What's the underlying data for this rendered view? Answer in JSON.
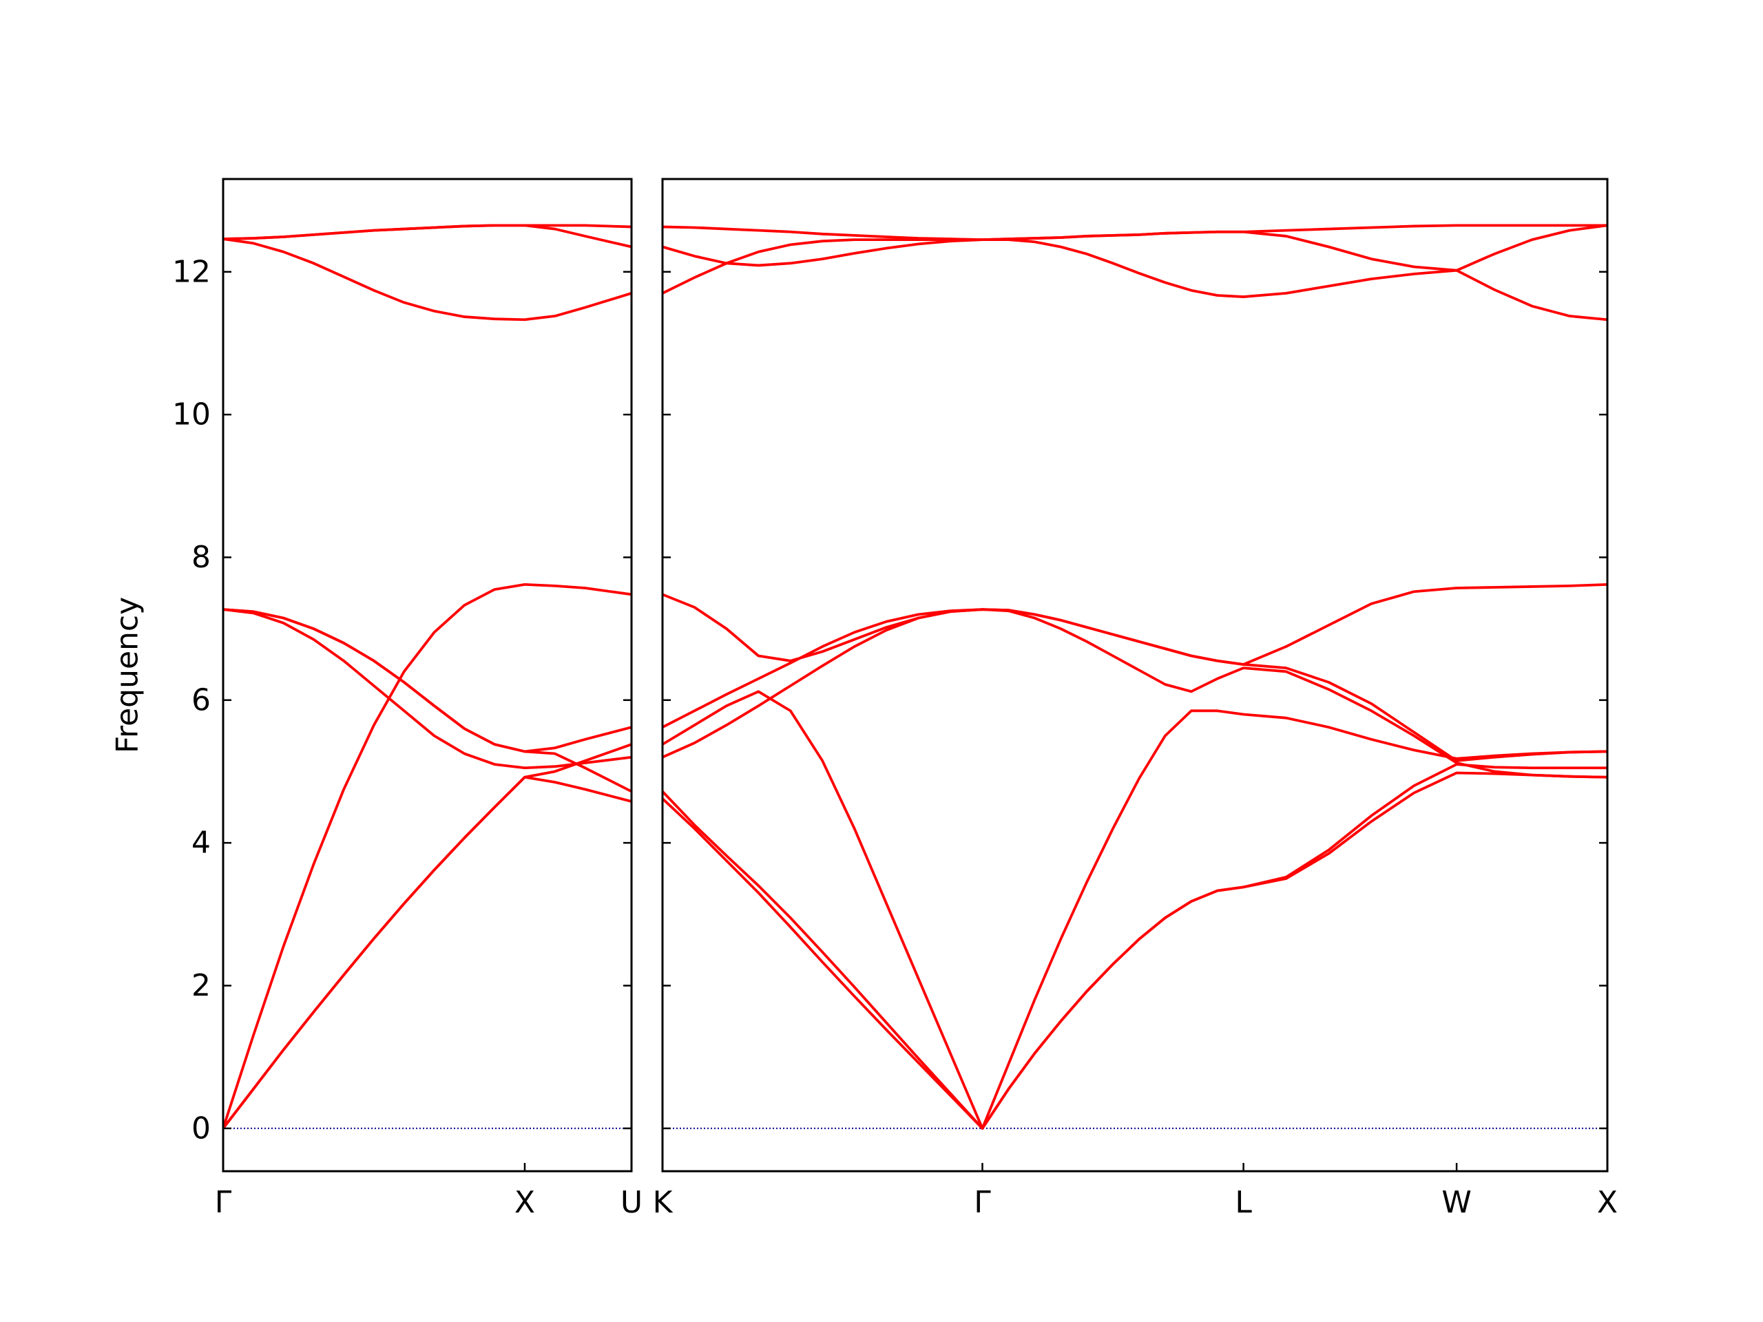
{
  "chart_data": [
    {
      "type": "line",
      "ylabel": "Frequency",
      "show_ytick_labels": true,
      "xlim": [
        0,
        1.354
      ],
      "xticks": [
        {
          "value": 0,
          "label": "Γ"
        },
        {
          "value": 1,
          "label": "X"
        },
        {
          "value": 1.354,
          "label": "U"
        }
      ],
      "ylim": [
        -0.6,
        13.3
      ],
      "yticks": [
        0,
        2,
        4,
        6,
        8,
        10,
        12
      ],
      "hlines": [
        0
      ],
      "hline_color": "#00008b",
      "x": [
        0,
        0.1,
        0.2,
        0.3,
        0.4,
        0.5,
        0.6,
        0.7,
        0.8,
        0.9,
        1.0,
        1.1,
        1.2,
        1.354
      ],
      "series": [
        {
          "color": "#ff0000",
          "values": [
            0,
            1.3,
            2.55,
            3.7,
            4.75,
            5.65,
            6.4,
            6.95,
            7.33,
            7.55,
            7.62,
            7.6,
            7.57,
            7.48
          ]
        },
        {
          "color": "#ff0000",
          "values": [
            0,
            0.55,
            1.1,
            1.63,
            2.15,
            2.66,
            3.15,
            3.62,
            4.07,
            4.5,
            4.92,
            4.85,
            4.75,
            4.58
          ]
        },
        {
          "color": "#ff0000",
          "values": [
            0,
            0.55,
            1.1,
            1.63,
            2.15,
            2.66,
            3.15,
            3.62,
            4.07,
            4.5,
            4.92,
            5.0,
            5.15,
            5.38
          ]
        },
        {
          "color": "#ff0000",
          "values": [
            7.27,
            7.24,
            7.15,
            7.0,
            6.8,
            6.55,
            6.25,
            5.92,
            5.6,
            5.38,
            5.28,
            5.33,
            5.45,
            5.62
          ]
        },
        {
          "color": "#ff0000",
          "values": [
            7.27,
            7.24,
            7.15,
            7.0,
            6.8,
            6.55,
            6.25,
            5.92,
            5.6,
            5.38,
            5.28,
            5.25,
            5.05,
            4.72
          ]
        },
        {
          "color": "#ff0000",
          "values": [
            7.27,
            7.22,
            7.08,
            6.85,
            6.55,
            6.2,
            5.85,
            5.5,
            5.25,
            5.1,
            5.05,
            5.07,
            5.12,
            5.2
          ]
        },
        {
          "color": "#ff0000",
          "values": [
            12.46,
            12.47,
            12.49,
            12.52,
            12.55,
            12.58,
            12.6,
            12.62,
            12.64,
            12.65,
            12.65,
            12.65,
            12.65,
            12.63
          ]
        },
        {
          "color": "#ff0000",
          "values": [
            12.46,
            12.47,
            12.49,
            12.52,
            12.55,
            12.58,
            12.6,
            12.62,
            12.64,
            12.65,
            12.65,
            12.6,
            12.5,
            12.35
          ]
        },
        {
          "color": "#ff0000",
          "values": [
            12.46,
            12.4,
            12.28,
            12.12,
            11.93,
            11.74,
            11.57,
            11.45,
            11.37,
            11.34,
            11.33,
            11.38,
            11.5,
            11.7
          ]
        }
      ]
    },
    {
      "type": "line",
      "show_ytick_labels": false,
      "xlim": [
        1.354,
        4.488
      ],
      "xticks": [
        {
          "value": 1.354,
          "label": "K"
        },
        {
          "value": 2.415,
          "label": "Γ"
        },
        {
          "value": 3.281,
          "label": "L"
        },
        {
          "value": 3.988,
          "label": "W"
        },
        {
          "value": 4.488,
          "label": "X"
        }
      ],
      "ylim": [
        -0.6,
        13.3
      ],
      "yticks": [
        0,
        2,
        4,
        6,
        8,
        10,
        12
      ],
      "hlines": [
        0
      ],
      "hline_color": "#00008b",
      "x": [
        1.354,
        1.4601,
        1.5662,
        1.6723,
        1.7784,
        1.8845,
        1.9906,
        2.0967,
        2.2028,
        2.3089,
        2.415,
        2.5016,
        2.5882,
        2.6748,
        2.7614,
        2.848,
        2.9346,
        3.0212,
        3.1078,
        3.1944,
        3.281,
        3.4224,
        3.5638,
        3.7052,
        3.8466,
        3.988,
        4.113,
        4.238,
        4.363,
        4.488
      ],
      "series": [
        {
          "color": "#ff0000",
          "values": [
            4.62,
            4.2,
            3.75,
            3.3,
            2.82,
            2.33,
            1.85,
            1.38,
            0.92,
            0.46,
            0,
            0.55,
            1.05,
            1.5,
            1.92,
            2.3,
            2.65,
            2.95,
            3.18,
            3.33,
            3.38,
            3.5,
            3.85,
            4.3,
            4.7,
            4.98,
            4.97,
            4.95,
            4.93,
            4.92
          ]
        },
        {
          "color": "#ff0000",
          "values": [
            4.72,
            4.25,
            3.82,
            3.4,
            2.95,
            2.47,
            1.98,
            1.48,
            0.98,
            0.49,
            0,
            0.55,
            1.05,
            1.5,
            1.92,
            2.3,
            2.65,
            2.95,
            3.18,
            3.33,
            3.38,
            3.52,
            3.9,
            4.38,
            4.8,
            5.1,
            5.06,
            5.05,
            5.05,
            5.05
          ]
        },
        {
          "color": "#ff0000",
          "values": [
            5.38,
            5.65,
            5.92,
            6.12,
            5.85,
            5.15,
            4.2,
            3.15,
            2.1,
            1.05,
            0,
            0.9,
            1.8,
            2.65,
            3.45,
            4.2,
            4.9,
            5.5,
            5.85,
            5.85,
            5.8,
            5.75,
            5.62,
            5.45,
            5.3,
            5.18,
            5.22,
            5.25,
            5.27,
            5.28
          ]
        },
        {
          "color": "#ff0000",
          "values": [
            5.2,
            5.4,
            5.65,
            5.92,
            6.2,
            6.48,
            6.75,
            6.98,
            7.15,
            7.24,
            7.27,
            7.26,
            7.2,
            7.12,
            7.02,
            6.92,
            6.82,
            6.72,
            6.62,
            6.55,
            6.5,
            6.75,
            7.05,
            7.35,
            7.52,
            7.57,
            7.58,
            7.59,
            7.6,
            7.62
          ]
        },
        {
          "color": "#ff0000",
          "values": [
            5.62,
            5.85,
            6.08,
            6.3,
            6.52,
            6.75,
            6.95,
            7.1,
            7.2,
            7.25,
            7.27,
            7.26,
            7.2,
            7.12,
            7.02,
            6.92,
            6.82,
            6.72,
            6.62,
            6.55,
            6.5,
            6.45,
            6.25,
            5.95,
            5.55,
            5.15,
            5.2,
            5.24,
            5.27,
            5.28
          ]
        },
        {
          "color": "#ff0000",
          "values": [
            7.48,
            7.3,
            7.0,
            6.62,
            6.55,
            6.68,
            6.85,
            7.02,
            7.15,
            7.24,
            7.27,
            7.25,
            7.15,
            7.0,
            6.82,
            6.62,
            6.42,
            6.22,
            6.12,
            6.3,
            6.45,
            6.4,
            6.15,
            5.85,
            5.5,
            5.12,
            5.0,
            4.95,
            4.93,
            4.92
          ]
        },
        {
          "color": "#ff0000",
          "values": [
            12.63,
            12.62,
            12.6,
            12.58,
            12.56,
            12.53,
            12.51,
            12.49,
            12.47,
            12.46,
            12.45,
            12.46,
            12.47,
            12.48,
            12.5,
            12.51,
            12.52,
            12.54,
            12.55,
            12.56,
            12.56,
            12.58,
            12.6,
            12.62,
            12.64,
            12.65,
            12.65,
            12.65,
            12.65,
            12.65
          ]
        },
        {
          "color": "#ff0000",
          "values": [
            12.35,
            12.22,
            12.12,
            12.09,
            12.12,
            12.18,
            12.26,
            12.33,
            12.39,
            12.43,
            12.45,
            12.46,
            12.47,
            12.48,
            12.5,
            12.51,
            12.52,
            12.54,
            12.55,
            12.56,
            12.56,
            12.5,
            12.35,
            12.18,
            12.07,
            12.02,
            12.25,
            12.45,
            12.58,
            12.65
          ]
        },
        {
          "color": "#ff0000",
          "values": [
            11.7,
            11.92,
            12.12,
            12.28,
            12.38,
            12.43,
            12.45,
            12.45,
            12.45,
            12.45,
            12.45,
            12.45,
            12.42,
            12.35,
            12.25,
            12.12,
            11.98,
            11.85,
            11.74,
            11.67,
            11.65,
            11.7,
            11.8,
            11.9,
            11.97,
            12.02,
            11.75,
            11.52,
            11.38,
            11.33
          ]
        }
      ]
    }
  ]
}
